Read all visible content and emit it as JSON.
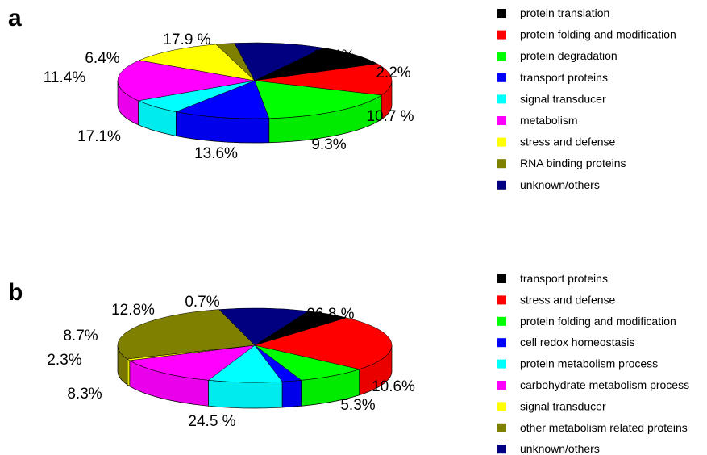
{
  "chart_data": [
    {
      "type": "pie",
      "panel_label": "a",
      "categories": [
        "protein translation",
        "protein folding and modification",
        "protein degradation",
        "transport proteins",
        "signal transducer",
        "metabolism",
        "stress and defense",
        "RNA binding proteins",
        "unknown/others"
      ],
      "values": [
        9.3,
        13.6,
        17.1,
        11.4,
        6.4,
        17.9,
        11.4,
        2.2,
        10.7
      ],
      "labels": [
        "9.3%",
        "13.6%",
        "17.1%",
        "11.4%",
        "6.4%",
        "17.9 %",
        "11.4%",
        "2.2%",
        "10.7 %"
      ],
      "colors": [
        "#000000",
        "#ff0000",
        "#00ff00",
        "#0000ff",
        "#00ffff",
        "#ff00ff",
        "#ffff00",
        "#808000",
        "#000080"
      ],
      "legend_position": "right"
    },
    {
      "type": "pie",
      "panel_label": "b",
      "categories": [
        "transport proteins",
        "stress and defense",
        "protein folding and modification",
        "cell redox homeostasis",
        "protein metabolism process",
        "carbohydrate metabolism process",
        "signal transducer",
        "other metabolism related proteins",
        "unknown/others"
      ],
      "values": [
        5.3,
        24.5,
        8.3,
        2.3,
        8.7,
        12.8,
        0.7,
        26.8,
        10.6
      ],
      "labels": [
        "5.3%",
        "24.5 %",
        "8.3%",
        "2.3%",
        "8.7%",
        "12.8%",
        "0.7%",
        "26.8 %",
        "10.6%"
      ],
      "colors": [
        "#000000",
        "#ff0000",
        "#00ff00",
        "#0000ff",
        "#00ffff",
        "#ff00ff",
        "#ffff00",
        "#808000",
        "#000080"
      ],
      "legend_position": "right"
    }
  ]
}
